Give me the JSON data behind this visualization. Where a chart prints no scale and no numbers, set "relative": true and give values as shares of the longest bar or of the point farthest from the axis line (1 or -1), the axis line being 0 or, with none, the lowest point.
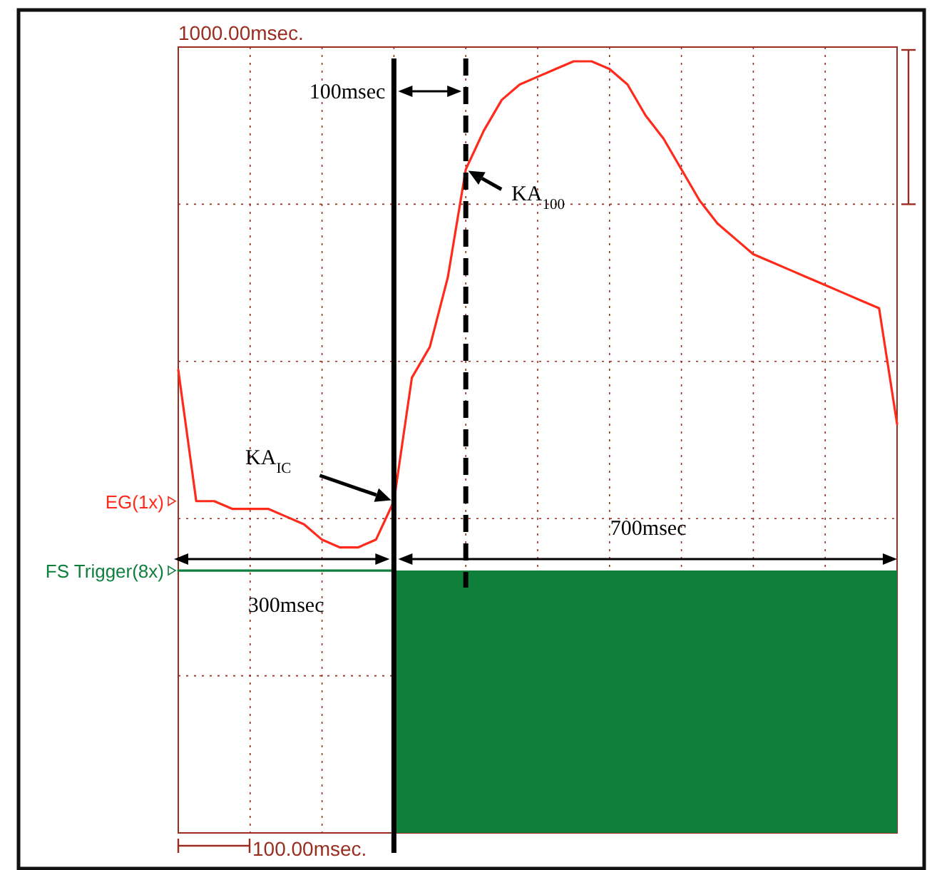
{
  "chart_data": {
    "type": "line",
    "relative": true,
    "grid": true,
    "legend": "left",
    "categories": [
      null,
      null,
      null,
      null,
      null,
      null,
      null,
      null,
      null,
      null,
      null,
      null,
      null,
      null,
      null,
      null,
      null,
      null,
      null,
      null,
      null,
      null,
      null,
      null,
      null,
      null,
      null,
      null,
      null,
      null,
      null,
      null,
      null,
      null,
      null,
      null,
      null,
      null,
      null,
      null,
      null
    ],
    "series": [
      {
        "name": "EG(1x)",
        "color": "#ff2a1a",
        "values": [
          0.6,
          0.43,
          0.43,
          0.42,
          0.42,
          0.42,
          0.41,
          0.4,
          0.38,
          0.37,
          0.37,
          0.38,
          0.43,
          0.59,
          0.63,
          0.72,
          0.86,
          0.91,
          0.95,
          0.97,
          0.98,
          0.99,
          1,
          1,
          0.99,
          0.97,
          0.93,
          0.9,
          0.86,
          0.82,
          0.79,
          0.77,
          0.75,
          0.74,
          0.73,
          0.72,
          0.71,
          0.7,
          0.69,
          0.68,
          0.53
        ]
      },
      {
        "name": "FS Trigger(8x)",
        "color": "#0f7f3c",
        "values": [
          0.34,
          0.34,
          0.34,
          0.34,
          0.34,
          0.34,
          0.34,
          0.34,
          0.34,
          0.34,
          0.34,
          0.34,
          0.34,
          null,
          null,
          null,
          null,
          null,
          null,
          null,
          null,
          null,
          null,
          null,
          null,
          null,
          null,
          null,
          null,
          null,
          null,
          null,
          null,
          null,
          null,
          null,
          null,
          null,
          null,
          null,
          null
        ]
      },
      {
        "type": "area",
        "color": "#0f7f3c",
        "values": [
          null,
          null,
          null,
          null,
          null,
          null,
          null,
          null,
          null,
          null,
          null,
          null,
          0.34,
          0.34,
          0.34,
          0.34,
          0.34,
          0.34,
          0.34,
          0.34,
          0.34,
          0.34,
          0.34,
          0.34,
          0.34,
          0.34,
          0.34,
          0.34,
          0.34,
          0.34,
          0.34,
          0.34,
          0.34,
          0.34,
          0.34,
          0.34,
          0.34,
          0.34,
          0.34,
          0.34,
          0.34
        ]
      }
    ],
    "annotations": [
      "1000.00msec.",
      "100.00msec.",
      "100msec",
      "300msec",
      "700msec",
      "KA$_{IC}$",
      "KA$_{100}$"
    ]
  }
}
